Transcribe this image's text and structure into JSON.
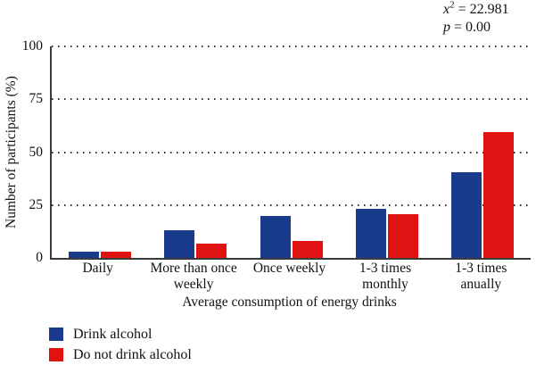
{
  "annotation": {
    "chi_var": "x",
    "chi_exp": "2",
    "chi_eq": " = 22.981",
    "p_var": "p",
    "p_eq": " = 0.00"
  },
  "chart_data": {
    "type": "bar",
    "title": "",
    "xlabel": "Average consumption of energy drinks",
    "ylabel": "Number of participants (%)",
    "ylim": [
      0,
      100
    ],
    "yticks": [
      0,
      25,
      50,
      75,
      100
    ],
    "grid": "horizontal-dotted",
    "legend_position": "bottom-left",
    "categories": [
      "Daily",
      "More than once\nweekly",
      "Once weekly",
      "1-3 times\nmonthly",
      "1-3 times\nanually"
    ],
    "series": [
      {
        "name": "Drink alcohol",
        "color": "#1a3a8c",
        "values": [
          2.8,
          13.0,
          20.0,
          23.3,
          40.5
        ]
      },
      {
        "name": "Do not drink alcohol",
        "color": "#e11212",
        "values": [
          2.8,
          6.7,
          8.0,
          20.7,
          59.6
        ]
      }
    ],
    "stats": {
      "chi_square": "22.981",
      "p_value": "0.00"
    },
    "axis_color": "#3a3a3a"
  }
}
